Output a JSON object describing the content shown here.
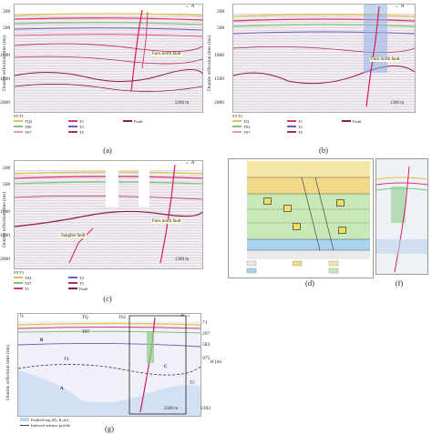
{
  "panels": {
    "a": {
      "caption": "(a)",
      "ylabel": "Double reflection time (ms)",
      "yticks": [
        "200",
        "500",
        "1000",
        "1500",
        "2000"
      ],
      "fault_label": "Furu north fault",
      "scale": "2200 m",
      "line_id": "SYT1",
      "legend": [
        "TQ2",
        "T06",
        "T07",
        "T1",
        "T2",
        "T5",
        "Fault"
      ]
    },
    "b": {
      "caption": "(b)",
      "ylabel": "Double reflection time (ms)",
      "yticks": [
        "200",
        "500",
        "1000",
        "1500",
        "2000"
      ],
      "fault_label": "Furu north fault",
      "scale": "1300 m",
      "line_id": "SYT2",
      "legend": [
        "TQ",
        "T02",
        "T07",
        "T1",
        "T2",
        "T5",
        "Fault"
      ]
    },
    "c": {
      "caption": "(c)",
      "ylabel": "Double reflection time (ms)",
      "yticks": [
        "200",
        "500",
        "1000",
        "1500",
        "2000"
      ],
      "fault_label": "Furu north fault",
      "fault_label2": "Sangbei fault",
      "scale": "1300 m",
      "line_id": "SYT3",
      "legend": [
        "T04",
        "T07",
        "T1",
        "T2",
        "T5",
        "Fault"
      ]
    },
    "d": {
      "caption": "(d)"
    },
    "f": {
      "caption": "(f)"
    },
    "g": {
      "caption": "(g)",
      "ylabel": "Double reflection time (ms)",
      "right_label": "H (m)",
      "q_label": "Q",
      "tq_label": "TQ",
      "t02_label": "T02",
      "t07_label": "T07",
      "t4_label": "T4",
      "t5_label": "T5",
      "a_label": "A",
      "b_label": "B",
      "c_label": "C",
      "right_ticks": [
        "71",
        "297",
        "583",
        "975",
        "2392"
      ],
      "scale": "2500 m",
      "legend_1": "Faulted-sag (D₃-K₁sh)",
      "legend_2": "Inferred seismic profile"
    }
  },
  "north_symbol": "N",
  "colors": {
    "seismic_bg": "#f3eef2",
    "pink": "#d9386e",
    "green": "#7cc47a",
    "yellow": "#e8d24a",
    "blue_overlay": "#8fb2e6",
    "fault": "#d81b60"
  }
}
